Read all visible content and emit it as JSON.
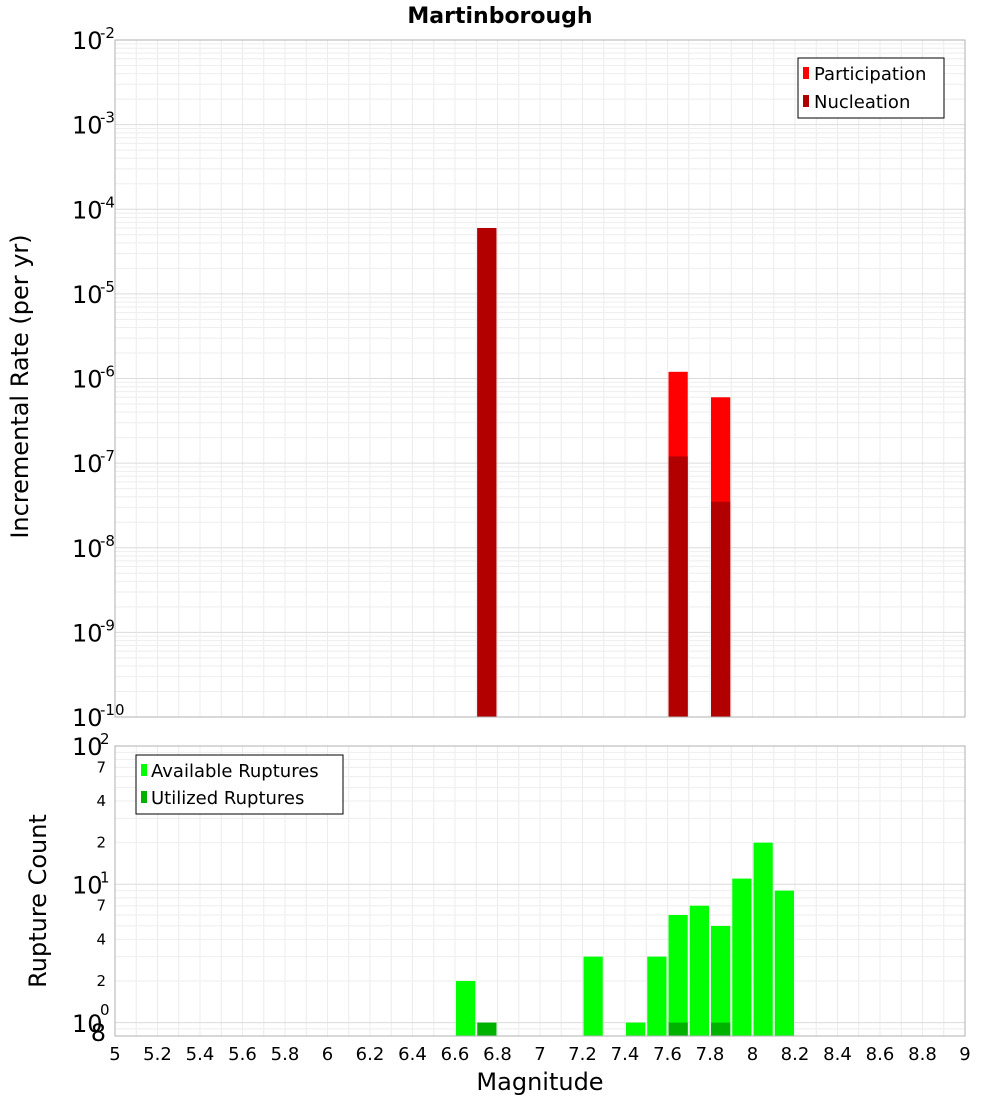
{
  "chart_data": [
    {
      "type": "bar",
      "title": "Martinborough",
      "xlabel": "",
      "ylabel": "Incremental Rate (per yr)",
      "yscale": "log",
      "ylim": [
        1e-10,
        0.01
      ],
      "xlim": [
        5,
        9
      ],
      "grid": true,
      "legend_position": "top-right",
      "y_tick_labels": [
        {
          "base": "10",
          "exp": "-2"
        },
        {
          "base": "10",
          "exp": "-3"
        },
        {
          "base": "10",
          "exp": "-4"
        },
        {
          "base": "10",
          "exp": "-5"
        },
        {
          "base": "10",
          "exp": "-6"
        },
        {
          "base": "10",
          "exp": "-7"
        },
        {
          "base": "10",
          "exp": "-8"
        },
        {
          "base": "10",
          "exp": "-9"
        },
        {
          "base": "10",
          "exp": "-10"
        }
      ],
      "series": [
        {
          "name": "Participation",
          "color": "#ff0000",
          "points": [
            [
              6.75,
              6e-05
            ],
            [
              7.65,
              1.2e-06
            ],
            [
              7.85,
              6e-07
            ]
          ]
        },
        {
          "name": "Nucleation",
          "color": "#b20000",
          "points": [
            [
              6.75,
              6e-05
            ],
            [
              7.65,
              1.2e-07
            ],
            [
              7.85,
              3.5e-08
            ]
          ]
        }
      ]
    },
    {
      "type": "bar",
      "title": "",
      "xlabel": "Magnitude",
      "ylabel": "Rupture Count",
      "yscale": "log",
      "ylim": [
        0.8,
        100
      ],
      "xlim": [
        5,
        9
      ],
      "grid": true,
      "legend_position": "top-left",
      "y_tick_labels": [
        {
          "base": "10",
          "exp": "2"
        },
        {
          "base": "10",
          "exp": "1"
        },
        {
          "base": "10",
          "exp": "0"
        }
      ],
      "y_minor_tick_labels": [
        "7",
        "4",
        "2",
        "7",
        "4",
        "2",
        "8"
      ],
      "x_tick_labels": [
        "5",
        "5.2",
        "5.4",
        "5.6",
        "5.8",
        "6",
        "6.2",
        "6.4",
        "6.6",
        "6.8",
        "7",
        "7.2",
        "7.4",
        "7.6",
        "7.8",
        "8",
        "8.2",
        "8.4",
        "8.6",
        "8.8",
        "9"
      ],
      "series": [
        {
          "name": "Available Ruptures",
          "color": "#00ff00",
          "points": [
            [
              6.65,
              2
            ],
            [
              7.25,
              3
            ],
            [
              7.45,
              1
            ],
            [
              7.55,
              3
            ],
            [
              7.65,
              6
            ],
            [
              7.75,
              7
            ],
            [
              7.85,
              5
            ],
            [
              7.95,
              11
            ],
            [
              8.05,
              20
            ],
            [
              8.15,
              9
            ]
          ]
        },
        {
          "name": "Utilized Ruptures",
          "color": "#00b200",
          "points": [
            [
              6.75,
              1
            ],
            [
              7.65,
              1
            ],
            [
              7.85,
              1
            ]
          ]
        }
      ]
    }
  ]
}
